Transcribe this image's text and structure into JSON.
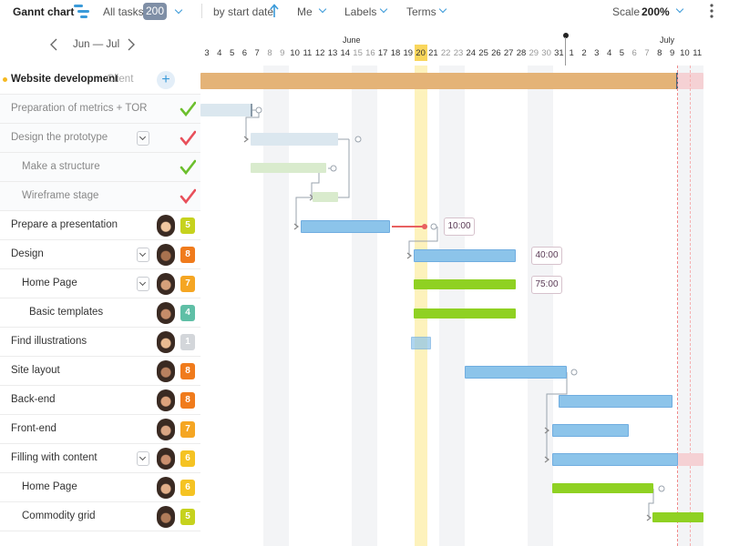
{
  "toolbar": {
    "title": "Gannt chart",
    "filter_all_tasks": "All tasks",
    "task_count": "200",
    "sort_label": "by start date",
    "assignee_filter": "Me",
    "labels_filter": "Labels",
    "terms_filter": "Terms",
    "scale_label": "Scale",
    "scale_value": "200%"
  },
  "navigator": {
    "range": "Jun — Jul"
  },
  "timeline": {
    "months": [
      {
        "label": "June"
      },
      {
        "label": "July"
      }
    ],
    "days": [
      "3",
      "4",
      "5",
      "6",
      "7",
      "8",
      "9",
      "10",
      "11",
      "12",
      "13",
      "14",
      "15",
      "16",
      "17",
      "18",
      "19",
      "20",
      "21",
      "22",
      "23",
      "24",
      "25",
      "26",
      "27",
      "28",
      "29",
      "30",
      "31",
      "1",
      "2",
      "3",
      "4",
      "5",
      "6",
      "7",
      "8",
      "9",
      "10",
      "11"
    ],
    "weekend_days": [
      "8",
      "9",
      "15",
      "16",
      "22",
      "23",
      "29",
      "30",
      "6",
      "7"
    ],
    "today": "20"
  },
  "project": {
    "title": "Website development",
    "client": "Client"
  },
  "tasks": [
    {
      "label": "Preparation of metrics + TOR",
      "status": "done"
    },
    {
      "label": "Design the prototype",
      "status": "in-progress",
      "expandable": true
    },
    {
      "label": "Make a structure",
      "status": "done"
    },
    {
      "label": "Wireframe stage",
      "status": "in-progress"
    },
    {
      "label": "Prepare a presentation",
      "count": "5",
      "count_color": "#c6d21e",
      "time": "10:00"
    },
    {
      "label": "Design",
      "count": "8",
      "count_color": "#f07b1c",
      "expandable": true,
      "time": "40:00"
    },
    {
      "label": "Home Page",
      "count": "7",
      "count_color": "#f5a623",
      "expandable": true,
      "time": "75:00"
    },
    {
      "label": "Basic templates",
      "count": "4",
      "count_color": "#5fbfa6"
    },
    {
      "label": "Find illustrations",
      "count": "1",
      "count_color": "#d3d6da"
    },
    {
      "label": "Site layout",
      "count": "8",
      "count_color": "#f07b1c"
    },
    {
      "label": "Back-end",
      "count": "8",
      "count_color": "#f07b1c"
    },
    {
      "label": "Front-end",
      "count": "7",
      "count_color": "#f5a623"
    },
    {
      "label": "Filling with content",
      "count": "6",
      "count_color": "#f5c323",
      "expandable": true
    },
    {
      "label": "Home Page",
      "count": "6",
      "count_color": "#f5c323"
    },
    {
      "label": "Commodity grid",
      "count": "5",
      "count_color": "#c6d21e"
    }
  ],
  "colors": {
    "accent": "#3a9ad9",
    "check_done": "#6cbf2d",
    "check_pending": "#e8505b",
    "today": "#f9d65c"
  }
}
